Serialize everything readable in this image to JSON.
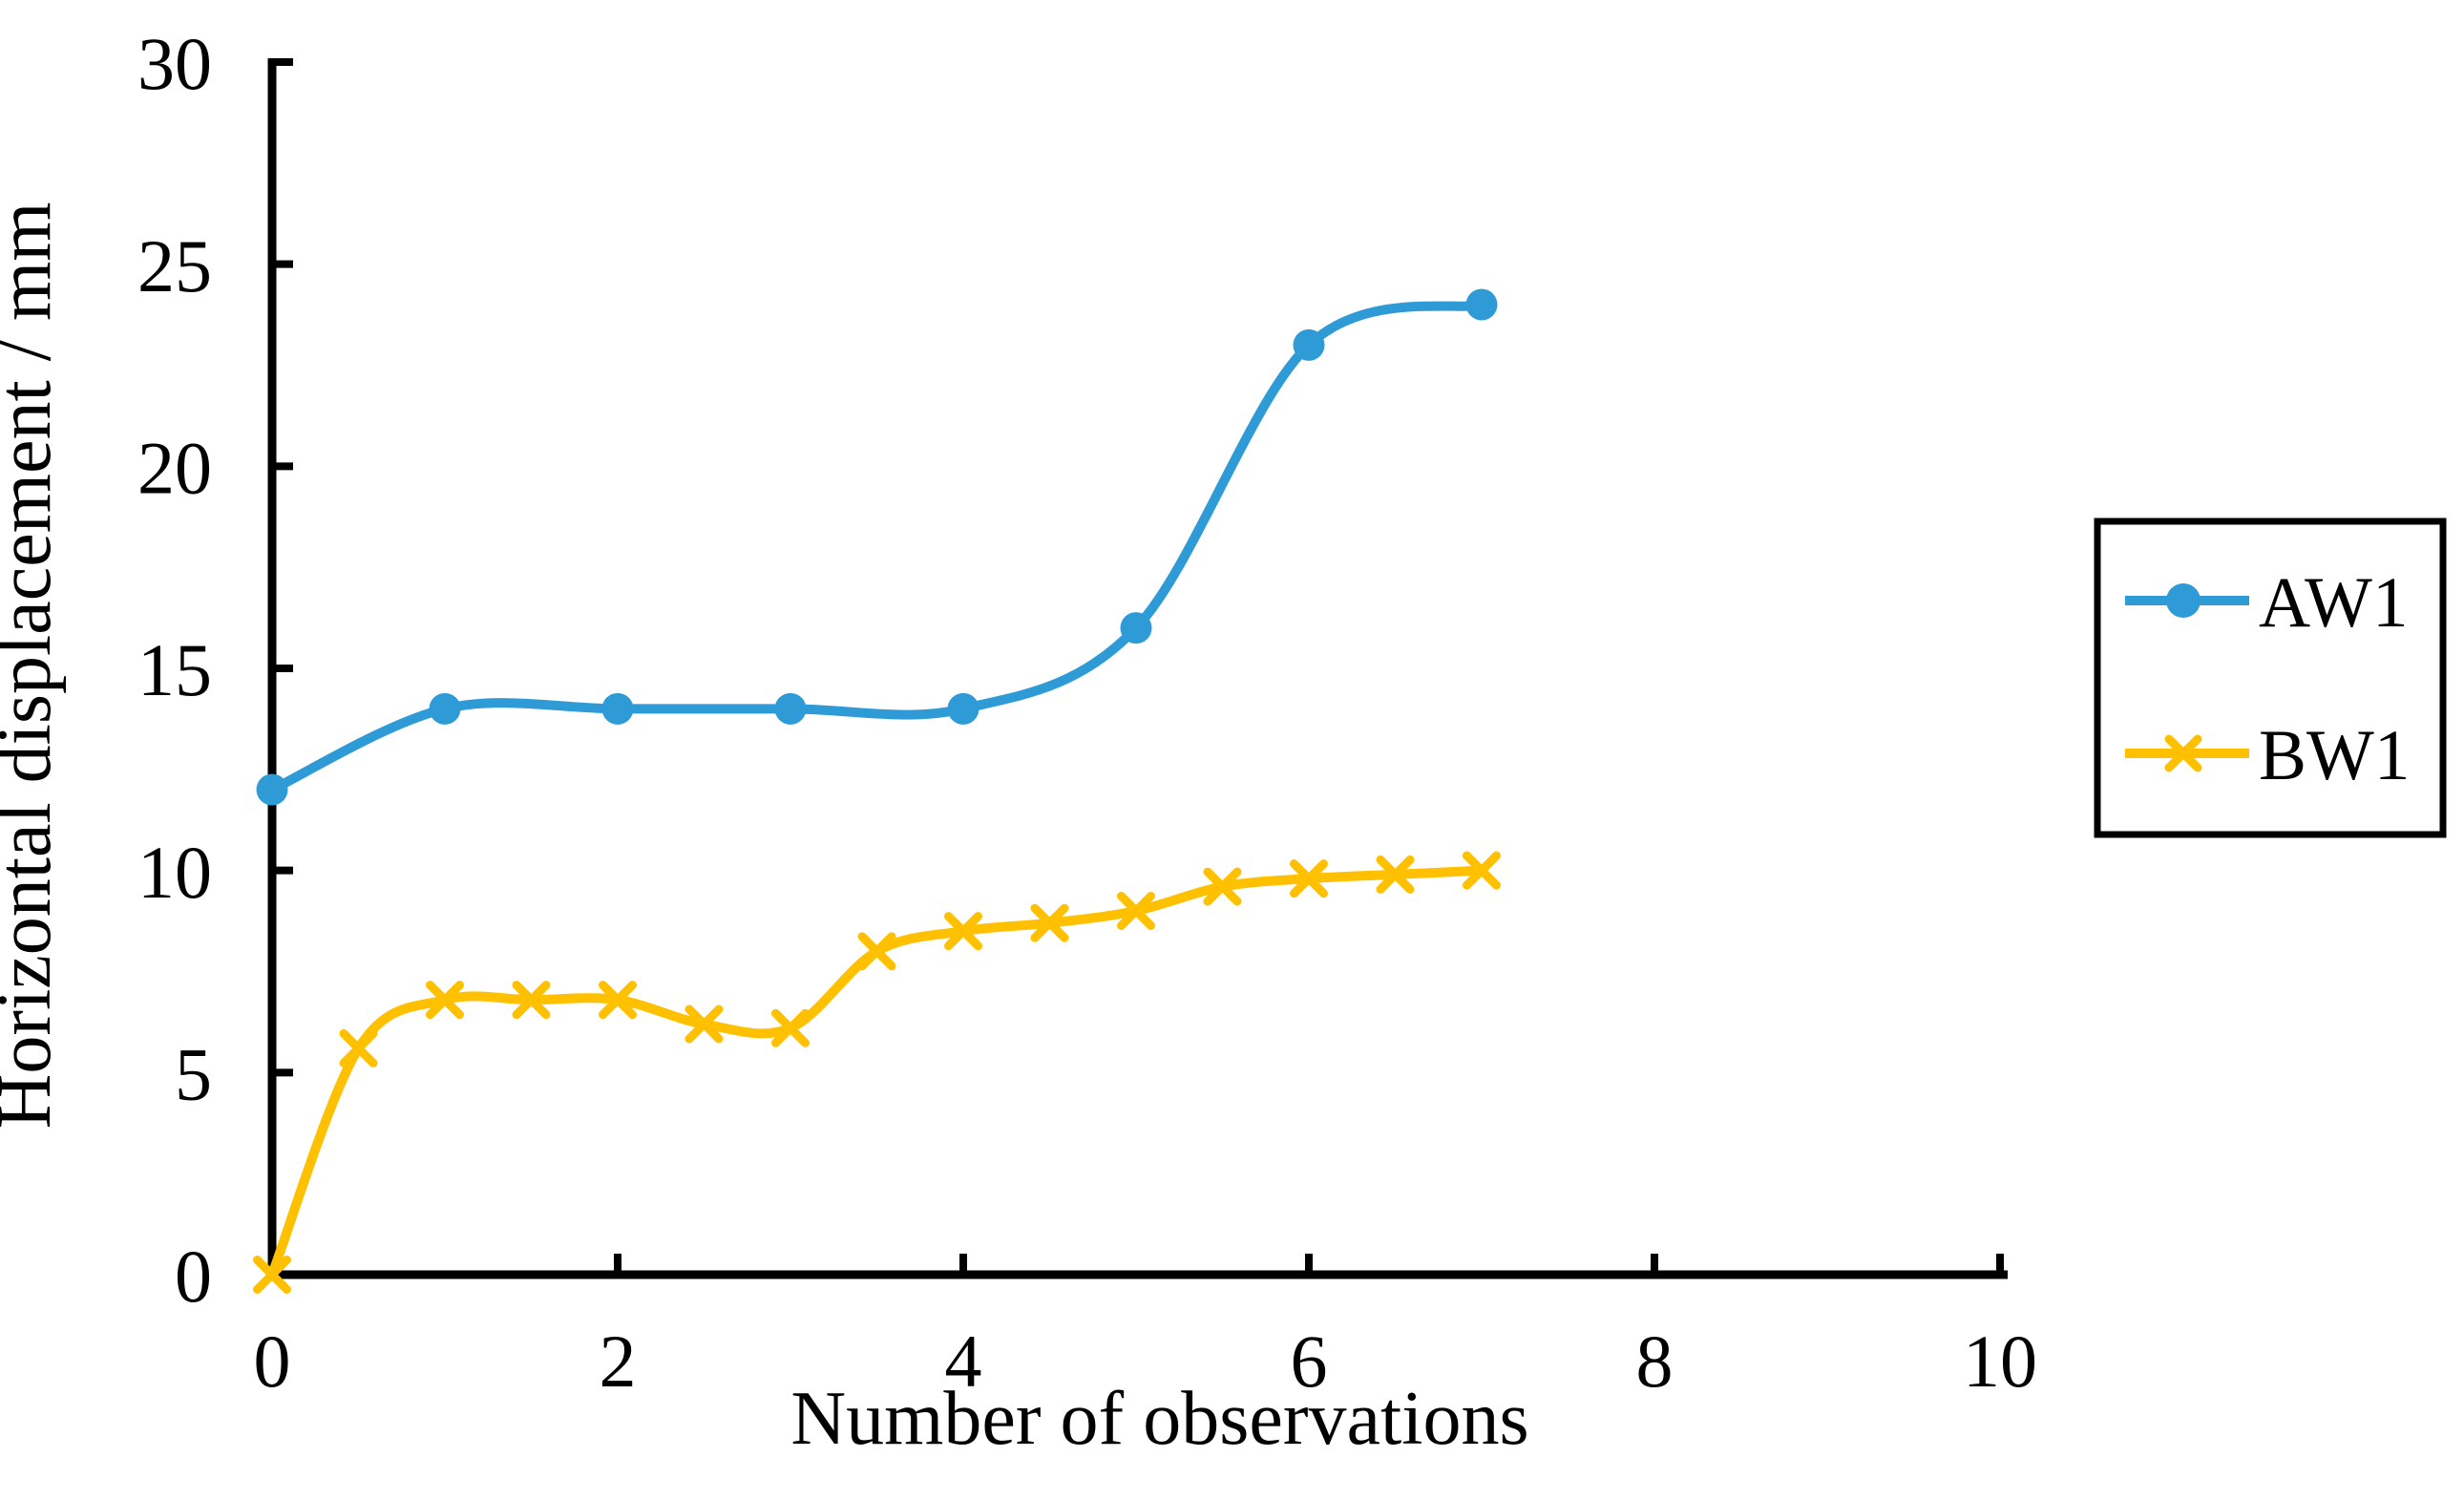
{
  "chart_data": {
    "type": "line",
    "title": "",
    "xlabel": "Number of observations",
    "ylabel": "Horizontal displacement / mm",
    "xlim": [
      0,
      10
    ],
    "ylim": [
      0,
      30
    ],
    "x_ticks": [
      0,
      2,
      4,
      6,
      8,
      10
    ],
    "y_ticks": [
      0,
      5,
      10,
      15,
      20,
      25,
      30
    ],
    "grid": false,
    "line_style": "smooth",
    "legend_position": "right-outside",
    "axis_color": "#000000",
    "series": [
      {
        "name": "AW1",
        "color": "#2E9BD6",
        "marker": "circle",
        "x": [
          0,
          1,
          2,
          3,
          4,
          5,
          6,
          7
        ],
        "y": [
          12,
          14,
          14,
          14,
          14,
          16,
          23,
          24
        ]
      },
      {
        "name": "BW1",
        "color": "#FFC000",
        "marker": "x",
        "x": [
          0,
          0.5,
          1,
          1.5,
          2,
          2.5,
          3,
          3.5,
          4,
          4.5,
          5,
          5.5,
          6,
          6.5,
          7
        ],
        "y": [
          0,
          5.6,
          6.8,
          6.8,
          6.8,
          6.2,
          6.1,
          8.0,
          8.5,
          8.7,
          9.0,
          9.6,
          9.8,
          9.9,
          10.0
        ]
      }
    ]
  }
}
